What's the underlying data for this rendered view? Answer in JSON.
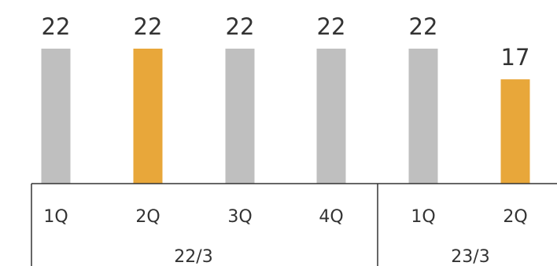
{
  "chart_data": {
    "type": "bar",
    "categories": [
      "1Q",
      "2Q",
      "3Q",
      "4Q",
      "1Q",
      "2Q"
    ],
    "values": [
      22,
      22,
      22,
      22,
      22,
      17
    ],
    "data_labels": [
      "22",
      "22",
      "22",
      "22",
      "22",
      "17"
    ],
    "groups": [
      {
        "label": "22/3",
        "count": 4
      },
      {
        "label": "23/3",
        "count": 2
      }
    ],
    "highlighted": [
      false,
      true,
      false,
      false,
      false,
      true
    ],
    "colors": {
      "default": "#BFBFBF",
      "highlight": "#E8A73A",
      "axis": "#333333",
      "text": "#333333"
    },
    "grid": false,
    "legend": "none"
  }
}
